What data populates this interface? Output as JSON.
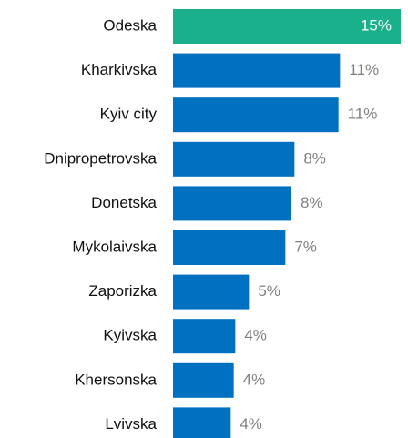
{
  "chart_data": {
    "type": "bar",
    "orientation": "horizontal",
    "categories": [
      "Odeska",
      "Kharkivska",
      "Kyiv city",
      "Dnipropetrovska",
      "Donetska",
      "Mykolaivska",
      "Zaporizka",
      "Kyivska",
      "Khersonska",
      "Lvivska"
    ],
    "values": [
      15,
      11,
      10.9,
      8,
      7.8,
      7.4,
      5,
      4.1,
      4,
      3.8
    ],
    "value_labels": [
      "15%",
      "11%",
      "11%",
      "8%",
      "8%",
      "7%",
      "5%",
      "4%",
      "4%",
      "4%"
    ],
    "colors": [
      "#1bb08c",
      "#0070c0",
      "#0070c0",
      "#0070c0",
      "#0070c0",
      "#0070c0",
      "#0070c0",
      "#0070c0",
      "#0070c0",
      "#0070c0"
    ],
    "xlim": [
      0,
      15
    ]
  }
}
